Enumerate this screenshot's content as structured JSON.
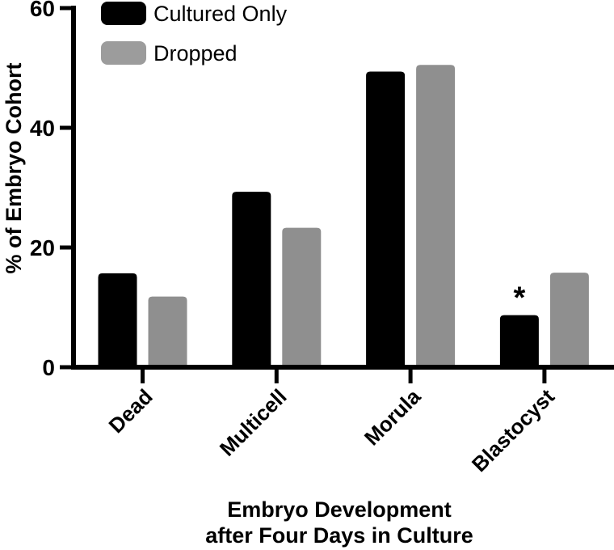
{
  "chart_data": {
    "type": "bar",
    "title": "",
    "categories": [
      "Dead",
      "Multicell",
      "Morula",
      "Blastocyst"
    ],
    "series": [
      {
        "name": "Cultured Only",
        "color": "#000000",
        "values": [
          15.7,
          29.3,
          49.4,
          8.7
        ]
      },
      {
        "name": "Dropped",
        "color": "#8f8f8f",
        "values": [
          11.8,
          23.3,
          50.5,
          15.8
        ]
      }
    ],
    "ylabel": "% of Embryo Cohort",
    "xlabel_lines": [
      "Embryo Development",
      "after Four Days in Culture"
    ],
    "ylim": [
      0,
      60
    ],
    "yticks": [
      0,
      20,
      40,
      60
    ],
    "grid": "off",
    "legend_position": "top-left-inside",
    "legend": [
      {
        "label": "Cultured Only",
        "color": "#000000"
      },
      {
        "label": "Dropped",
        "color": "#9c9c9c"
      }
    ],
    "annotations": [
      {
        "text": "*",
        "category": "Blastocyst",
        "series": "Cultured Only"
      }
    ],
    "axis_color": "#000000"
  }
}
